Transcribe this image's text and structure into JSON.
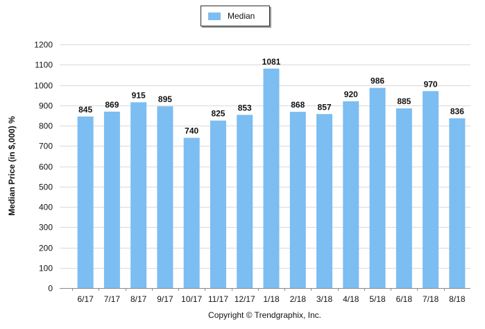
{
  "colors": {
    "bar": "#7cbdf2",
    "grid": "#d9d9d9",
    "axis": "#888888"
  },
  "legend": {
    "label": "Median"
  },
  "footer": {
    "copyright": "Copyright © Trendgraphix, Inc."
  },
  "chart_data": {
    "type": "bar",
    "title": "",
    "xlabel": "",
    "ylabel": "Median Price (in $,000) %",
    "categories": [
      "6/17",
      "7/17",
      "8/17",
      "9/17",
      "10/17",
      "11/17",
      "12/17",
      "1/18",
      "2/18",
      "3/18",
      "4/18",
      "5/18",
      "6/18",
      "7/18",
      "8/18"
    ],
    "series": [
      {
        "name": "Median",
        "values": [
          845,
          869,
          915,
          895,
          740,
          825,
          853,
          1081,
          868,
          857,
          920,
          986,
          885,
          970,
          836
        ]
      }
    ],
    "ylim": [
      0,
      1200
    ],
    "yticks": [
      0,
      100,
      200,
      300,
      400,
      500,
      600,
      700,
      800,
      900,
      1000,
      1100,
      1200
    ],
    "grid": true,
    "legend_position": "top-center",
    "data_labels": true
  }
}
